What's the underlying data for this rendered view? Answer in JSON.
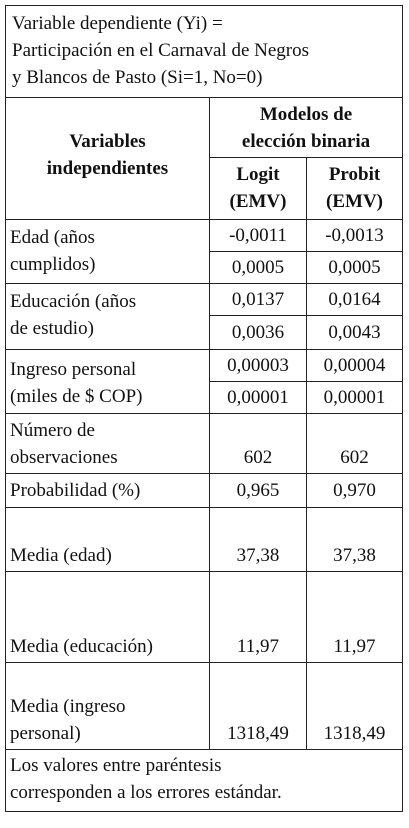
{
  "caption": {
    "line1": "Variable dependiente (Yi) =",
    "line2": "Participación en el Carnaval de Negros",
    "line3": "y Blancos de Pasto (Si=1, No=0)"
  },
  "header": {
    "independent_line1": "Variables",
    "independent_line2": "independientes",
    "models_line1": "Modelos de",
    "models_line2": "elección binaria",
    "logit_line1": "Logit",
    "logit_line2": "(EMV)",
    "probit_line1": "Probit",
    "probit_line2": "(EMV)"
  },
  "rows": {
    "edad": {
      "label_line1": "Edad (años",
      "label_line2": "cumplidos)",
      "logit_coef": "-0,0011",
      "probit_coef": "-0,0013",
      "logit_se": "0,0005",
      "probit_se": "0,0005"
    },
    "educacion": {
      "label_line1": "Educación (años",
      "label_line2": "de estudio)",
      "logit_coef": "0,0137",
      "probit_coef": "0,0164",
      "logit_se": "0,0036",
      "probit_se": "0,0043"
    },
    "ingreso": {
      "label_line1": "Ingreso personal",
      "label_line2": "(miles de $ COP)",
      "logit_coef": "0,00003",
      "probit_coef": "0,00004",
      "logit_se": "0,00001",
      "probit_se": "0,00001"
    },
    "observaciones": {
      "label_line1": "Número de",
      "label_line2": "observaciones",
      "logit": "602",
      "probit": "602"
    },
    "probabilidad": {
      "label": "Probabilidad (%)",
      "logit": "0,965",
      "probit": "0,970"
    },
    "media_edad": {
      "label": "Media (edad)",
      "logit": "37,38",
      "probit": "37,38"
    },
    "media_educacion": {
      "label": "Media (educación)",
      "logit": "11,97",
      "probit": "11,97"
    },
    "media_ingreso": {
      "label_line1": "Media (ingreso",
      "label_line2": "personal)",
      "logit": "1318,49",
      "probit": "1318,49"
    }
  },
  "footnote": {
    "line1": "Los valores entre paréntesis",
    "line2": "corresponden a los errores estándar."
  }
}
